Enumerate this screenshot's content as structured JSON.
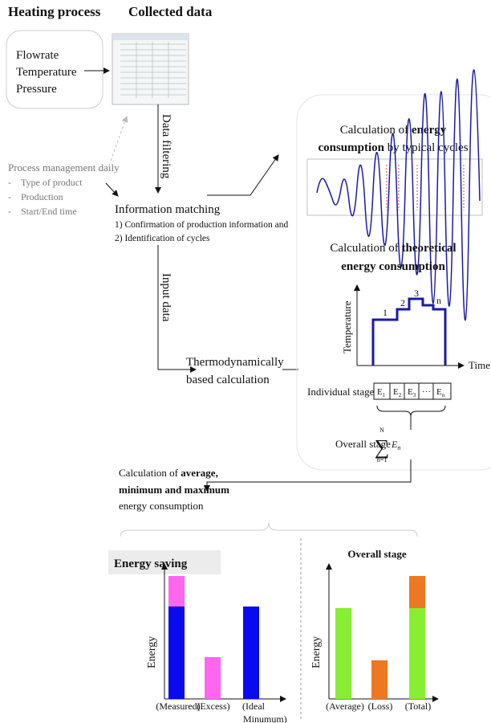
{
  "header": {
    "left": "Heating process",
    "right": "Collected data"
  },
  "inputs": [
    "Flowrate",
    "Temperature",
    "Pressure"
  ],
  "arrows": {
    "filtering": "Data filtering",
    "input": "Input data"
  },
  "process_management": {
    "title": "Process management daily",
    "items": [
      "Type of product",
      "Production",
      "Start/End time"
    ]
  },
  "matching": {
    "title": "Information matching",
    "lines": [
      "1) Confirmation of production information and",
      "2) Identification of cycles"
    ]
  },
  "calculation": [
    "Thermodynamically",
    "based calculation"
  ],
  "panel": {
    "cycles": {
      "line1": [
        "Calculation of ",
        "energy"
      ],
      "line2": [
        "consumption",
        " by typical cycles"
      ]
    },
    "theoretical": {
      "line1": [
        "Calculation of ",
        "theoretical"
      ],
      "line2": "energy consumption"
    },
    "plot": {
      "y_label": "Temperature",
      "x_label": "Time",
      "stages": [
        "1",
        "2",
        "3",
        "n"
      ]
    },
    "individual": {
      "label": "Individual stages",
      "cells": [
        "E",
        "E",
        "E",
        "···",
        "E"
      ],
      "subs": [
        "1",
        "2",
        "3",
        "",
        "n"
      ]
    },
    "overall": {
      "label": "Overall stage",
      "sum_top": "N",
      "sum_bottom": "n=1",
      "term": "E",
      "term_sub": "n"
    }
  },
  "summary": {
    "line1": [
      "Calculation of ",
      "average,"
    ],
    "line2": "minimum and maximum",
    "line3": "energy consumption"
  },
  "saving": {
    "title": "Energy saving",
    "y_label": "Energy",
    "categories": [
      "(Measured)",
      "(Excess)",
      "(Ideal",
      "Minumum)"
    ]
  },
  "overall_chart": {
    "title": "Overall stage",
    "y_label": "Energy",
    "categories": [
      "(Average)",
      "(Loss)",
      "(Total)"
    ]
  }
}
